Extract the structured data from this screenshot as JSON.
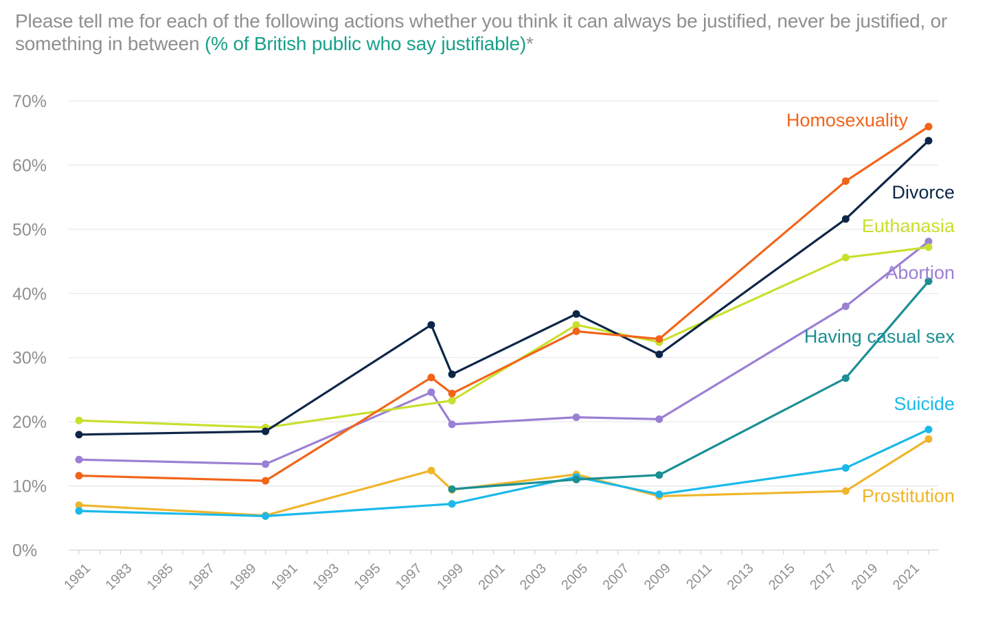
{
  "title": {
    "main": "Please tell me for each of the following actions whether you think it can always be justified, never be justified, or something in between ",
    "accent": "(% of British public who say justifiable)",
    "suffix": "*"
  },
  "chart_data": {
    "type": "line",
    "title": "Please tell me for each of the following actions whether you think it can always be justified, never be justified, or something in between (% of British public who say justifiable)*",
    "xlabel": "",
    "ylabel": "",
    "xlim": [
      1981,
      2022
    ],
    "ylim": [
      0,
      70
    ],
    "y_ticks": [
      0,
      10,
      20,
      30,
      40,
      50,
      60,
      70
    ],
    "y_tick_labels": [
      "0%",
      "10%",
      "20%",
      "30%",
      "40%",
      "50%",
      "60%",
      "70%"
    ],
    "x_ticks": [
      1981,
      1983,
      1985,
      1987,
      1989,
      1991,
      1993,
      1995,
      1997,
      1999,
      2001,
      2003,
      2005,
      2007,
      2009,
      2011,
      2013,
      2015,
      2017,
      2019,
      2021
    ],
    "x_tick_labels": [
      "1981",
      "1983",
      "1985",
      "1987",
      "1989",
      "1991",
      "1993",
      "1995",
      "1997",
      "1999",
      "2001",
      "2003",
      "2005",
      "2007",
      "2009",
      "2011",
      "2013",
      "2015",
      "2017",
      "2019",
      "2021"
    ],
    "grid": "horizontal",
    "legend": "inline labels at line ends",
    "series": [
      {
        "name": "Homosexuality",
        "color": "#f26419",
        "points": [
          [
            1981,
            11.6
          ],
          [
            1990,
            10.8
          ],
          [
            1998,
            26.9
          ],
          [
            1999,
            24.4
          ],
          [
            2005,
            34.1
          ],
          [
            2009,
            32.9
          ],
          [
            2018,
            57.5
          ],
          [
            2022,
            66.0
          ]
        ]
      },
      {
        "name": "Divorce",
        "color": "#0d2648",
        "points": [
          [
            1981,
            18.0
          ],
          [
            1990,
            18.5
          ],
          [
            1998,
            35.1
          ],
          [
            1999,
            27.4
          ],
          [
            2005,
            36.8
          ],
          [
            2009,
            30.5
          ],
          [
            2018,
            51.6
          ],
          [
            2022,
            63.8
          ]
        ]
      },
      {
        "name": "Euthanasia",
        "color": "#c8df2d",
        "points": [
          [
            1981,
            20.2
          ],
          [
            1990,
            19.1
          ],
          [
            1999,
            23.3
          ],
          [
            2005,
            35.1
          ],
          [
            2009,
            32.4
          ],
          [
            2018,
            45.6
          ],
          [
            2022,
            47.2
          ]
        ]
      },
      {
        "name": "Abortion",
        "color": "#9b7fd4",
        "points": [
          [
            1981,
            14.1
          ],
          [
            1990,
            13.4
          ],
          [
            1998,
            24.6
          ],
          [
            1999,
            19.6
          ],
          [
            2005,
            20.7
          ],
          [
            2009,
            20.4
          ],
          [
            2018,
            38.0
          ],
          [
            2022,
            48.1
          ]
        ]
      },
      {
        "name": "Having casual sex",
        "color": "#1a8f94",
        "points": [
          [
            1999,
            9.5
          ],
          [
            2005,
            11.0
          ],
          [
            2009,
            11.7
          ],
          [
            2018,
            26.8
          ],
          [
            2022,
            41.9
          ]
        ]
      },
      {
        "name": "Suicide",
        "color": "#1ab9ea",
        "points": [
          [
            1981,
            6.1
          ],
          [
            1990,
            5.3
          ],
          [
            1999,
            7.2
          ],
          [
            2005,
            11.4
          ],
          [
            2009,
            8.7
          ],
          [
            2018,
            12.8
          ],
          [
            2022,
            18.8
          ]
        ]
      },
      {
        "name": "Prostitution",
        "color": "#efb52b",
        "points": [
          [
            1981,
            7.0
          ],
          [
            1990,
            5.4
          ],
          [
            1998,
            12.4
          ],
          [
            1999,
            9.4
          ],
          [
            2005,
            11.8
          ],
          [
            2009,
            8.4
          ],
          [
            2018,
            9.2
          ],
          [
            2022,
            17.3
          ]
        ]
      }
    ]
  }
}
